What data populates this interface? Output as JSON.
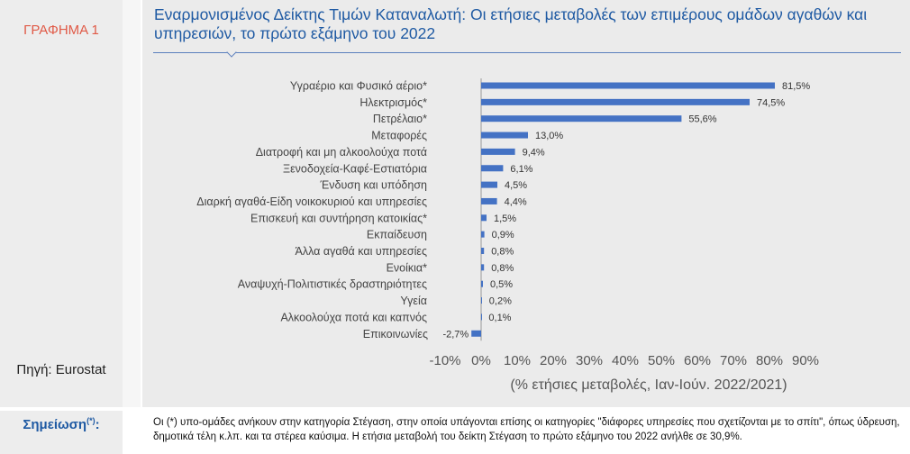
{
  "left": {
    "figure_label": "ΓΡΑΦΗΜΑ 1",
    "source": "Πηγή: Eurostat",
    "note_label": "Σημείωση",
    "note_mark": "(*)",
    "note_colon": ":"
  },
  "title": "Εναρμονισμένος Δείκτης Τιμών Καταναλωτή: Οι ετήσιες μεταβολές των επιμέρους ομάδων αγαθών και υπηρεσιών, το πρώτο εξάμηνο του 2022",
  "note_text": "Οι (*) υπο-ομάδες ανήκουν στην κατηγορία Στέγαση, στην οποία υπάγονται επίσης οι κατηγορίες \"διάφορες υπηρεσίες που σχετίζονται με το σπίτι\", όπως ύδρευση, δημοτικά τέλη κ.λπ. και τα στέρεα καύσιμα. Η ετήσια μεταβολή του δείκτη Στέγαση το πρώτο εξάμηνο του 2022 ανήλθε σε 30,9%.",
  "colors": {
    "bar": "#4472c4",
    "title": "#1f5aa3",
    "accent": "#e05a47"
  },
  "chart_data": {
    "type": "bar",
    "orientation": "horizontal",
    "title": "Εναρμονισμένος Δείκτης Τιμών Καταναλωτή: Οι ετήσιες μεταβολές των επιμέρους ομάδων αγαθών και υπηρεσιών, το πρώτο εξάμηνο του 2022",
    "xlabel": "(% ετήσιες μεταβολές, Ιαν-Ιούν. 2022/2021)",
    "xlim": [
      -10,
      90
    ],
    "ticks": [
      -10,
      0,
      10,
      20,
      30,
      40,
      50,
      60,
      70,
      80,
      90
    ],
    "tick_labels": [
      "-10%",
      "0%",
      "10%",
      "20%",
      "30%",
      "40%",
      "50%",
      "60%",
      "70%",
      "80%",
      "90%"
    ],
    "categories": [
      "Υγραέριο και Φυσικό αέριο*",
      "Ηλεκτρισμός*",
      "Πετρέλαιο*",
      "Μεταφορές",
      "Διατροφή και μη αλκοολούχα ποτά",
      "Ξενοδοχεία-Καφέ-Εστιατόρια",
      "Ένδυση και υπόδηση",
      "Διαρκή αγαθά-Είδη νοικοκυριού και υπηρεσίες",
      "Επισκευή και συντήρηση κατοικίας*",
      "Εκπαίδευση",
      "Άλλα αγαθά και υπηρεσίες",
      "Ενοίκια*",
      "Αναψυχή-Πολιτιστικές δραστηριότητες",
      "Υγεία",
      "Αλκοολούχα ποτά και καπνός",
      "Επικοινωνίες"
    ],
    "values": [
      81.5,
      74.5,
      55.6,
      13.0,
      9.4,
      6.1,
      4.5,
      4.4,
      1.5,
      0.9,
      0.8,
      0.8,
      0.5,
      0.2,
      0.1,
      -2.7
    ],
    "value_labels": [
      "81,5%",
      "74,5%",
      "55,6%",
      "13,0%",
      "9,4%",
      "6,1%",
      "4,5%",
      "4,4%",
      "1,5%",
      "0,9%",
      "0,8%",
      "0,8%",
      "0,5%",
      "0,2%",
      "0,1%",
      "-2,7%"
    ]
  }
}
